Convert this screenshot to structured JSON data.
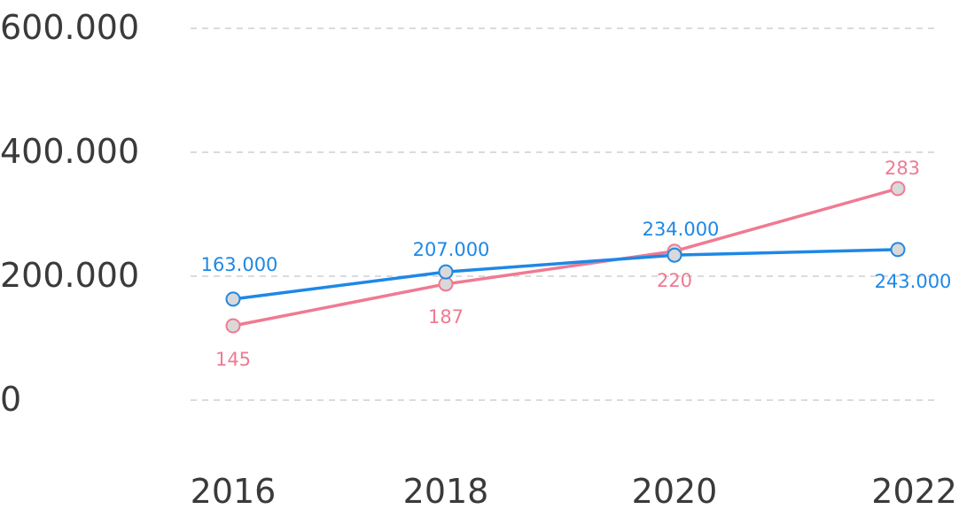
{
  "chart_data": {
    "type": "line",
    "x": [
      "2016",
      "2018",
      "2020",
      "2022"
    ],
    "y_ticks": [
      "0",
      "200.000",
      "400.000",
      "600.000"
    ],
    "ylim": [
      0,
      600000
    ],
    "grid": true,
    "series": [
      {
        "values": [
          163000,
          207000,
          234000,
          243000
        ],
        "labels": [
          "163.000",
          "207.000",
          "234.000",
          "243.000"
        ],
        "color": "#1e88e5",
        "marker_fill": "#d9d9d9"
      },
      {
        "values": [
          145,
          187,
          220,
          283
        ],
        "labels": [
          "145",
          "187",
          "220",
          "283"
        ],
        "color": "#ef7a93",
        "marker_fill": "#d9d9d9"
      }
    ]
  }
}
